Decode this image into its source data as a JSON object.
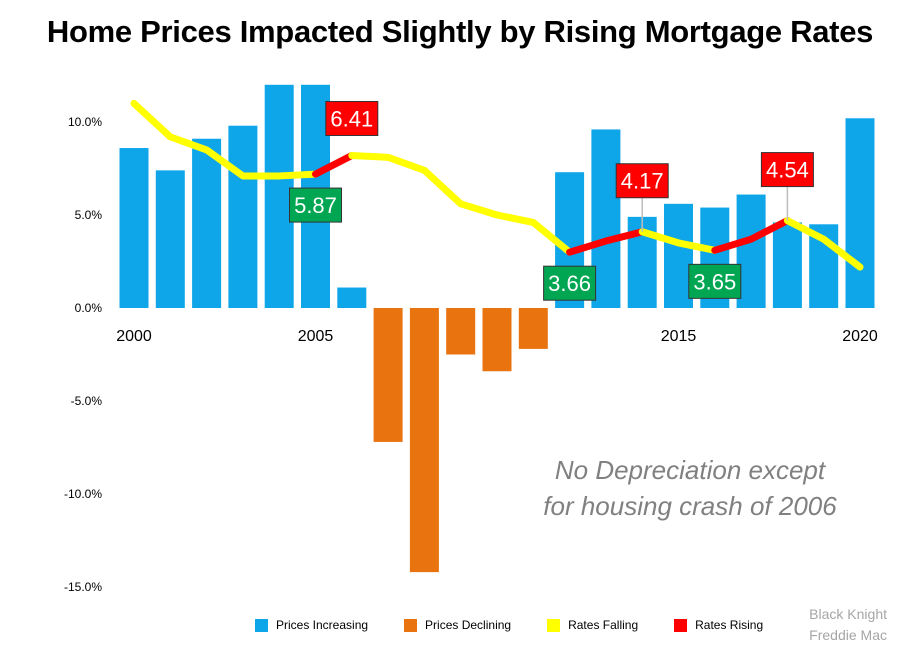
{
  "title": "Home Prices Impacted Slightly by Rising Mortgage Rates",
  "annotation": [
    "No Depreciation except",
    "for housing crash of 2006"
  ],
  "source": [
    "Black Knight",
    "Freddie Mac"
  ],
  "legend": [
    {
      "label": "Prices Increasing",
      "color": "#0ea5e9"
    },
    {
      "label": "Prices Declining",
      "color": "#e8730f"
    },
    {
      "label": "Rates Falling",
      "color": "#ffff00"
    },
    {
      "label": "Rates Rising",
      "color": "#ff0000"
    }
  ],
  "chart_data": {
    "type": "bar",
    "title": "Home Prices Impacted Slightly by Rising Mortgage Rates",
    "ylim": [
      -15,
      12
    ],
    "y_ticks": [
      "10.0%",
      "5.0%",
      "0.0%",
      "-5.0%",
      "-10.0%",
      "-15.0%"
    ],
    "y_tick_values": [
      10,
      5,
      0,
      -5,
      -10,
      -15
    ],
    "x_ticks": [
      "2000",
      "2005",
      "2015",
      "2020"
    ],
    "x_tick_values": [
      2000,
      2005,
      2015,
      2020
    ],
    "grid": false,
    "legend_position": "bottom",
    "colors": {
      "increasing": "#0ea5e9",
      "declining": "#e8730f",
      "falling": "#ffff00",
      "rising": "#ff0000",
      "label_falling": "#00a651",
      "label_rising": "#ff0000"
    },
    "series": [
      {
        "name": "Home Prices",
        "kind": "bar",
        "x": [
          2000,
          2001,
          2002,
          2003,
          2004,
          2005,
          2006,
          2007,
          2008,
          2009,
          2010,
          2011,
          2012,
          2013,
          2014,
          2015,
          2016,
          2017,
          2018,
          2019,
          2020
        ],
        "values": [
          8.6,
          7.4,
          9.1,
          9.8,
          12.0,
          12.0,
          1.1,
          -7.2,
          -14.2,
          -2.5,
          -3.4,
          -2.2,
          7.3,
          9.6,
          4.9,
          5.6,
          5.4,
          6.1,
          4.6,
          4.5,
          10.2
        ]
      },
      {
        "name": "Mortgage Rates",
        "kind": "line",
        "x": [
          2000,
          2001,
          2002,
          2003,
          2004,
          2005,
          2006,
          2007,
          2008,
          2009,
          2010,
          2011,
          2012,
          2013,
          2014,
          2015,
          2016,
          2017,
          2018,
          2019,
          2020
        ],
        "values": [
          11.0,
          9.2,
          8.5,
          7.1,
          7.1,
          7.2,
          8.2,
          8.1,
          7.4,
          5.6,
          5.0,
          4.6,
          3.0,
          3.6,
          4.1,
          3.5,
          3.1,
          3.7,
          4.7,
          3.7,
          2.2
        ],
        "segments": [
          {
            "state": "falling",
            "from": 0,
            "to": 5
          },
          {
            "state": "rising",
            "from": 5,
            "to": 6
          },
          {
            "state": "falling",
            "from": 6,
            "to": 12
          },
          {
            "state": "rising",
            "from": 12,
            "to": 14
          },
          {
            "state": "falling",
            "from": 14,
            "to": 16
          },
          {
            "state": "rising",
            "from": 16,
            "to": 18
          },
          {
            "state": "falling",
            "from": 18,
            "to": 20
          }
        ]
      }
    ],
    "data_labels": [
      {
        "text": "5.87",
        "state": "falling",
        "x": 2005,
        "place": "below"
      },
      {
        "text": "6.41",
        "state": "rising",
        "x": 2006,
        "place": "above"
      },
      {
        "text": "3.66",
        "state": "falling",
        "x": 2012,
        "place": "below"
      },
      {
        "text": "4.17",
        "state": "rising",
        "x": 2014,
        "place": "above",
        "leader": true
      },
      {
        "text": "3.65",
        "state": "falling",
        "x": 2016,
        "place": "below"
      },
      {
        "text": "4.54",
        "state": "rising",
        "x": 2018,
        "place": "above",
        "leader": true
      }
    ]
  }
}
